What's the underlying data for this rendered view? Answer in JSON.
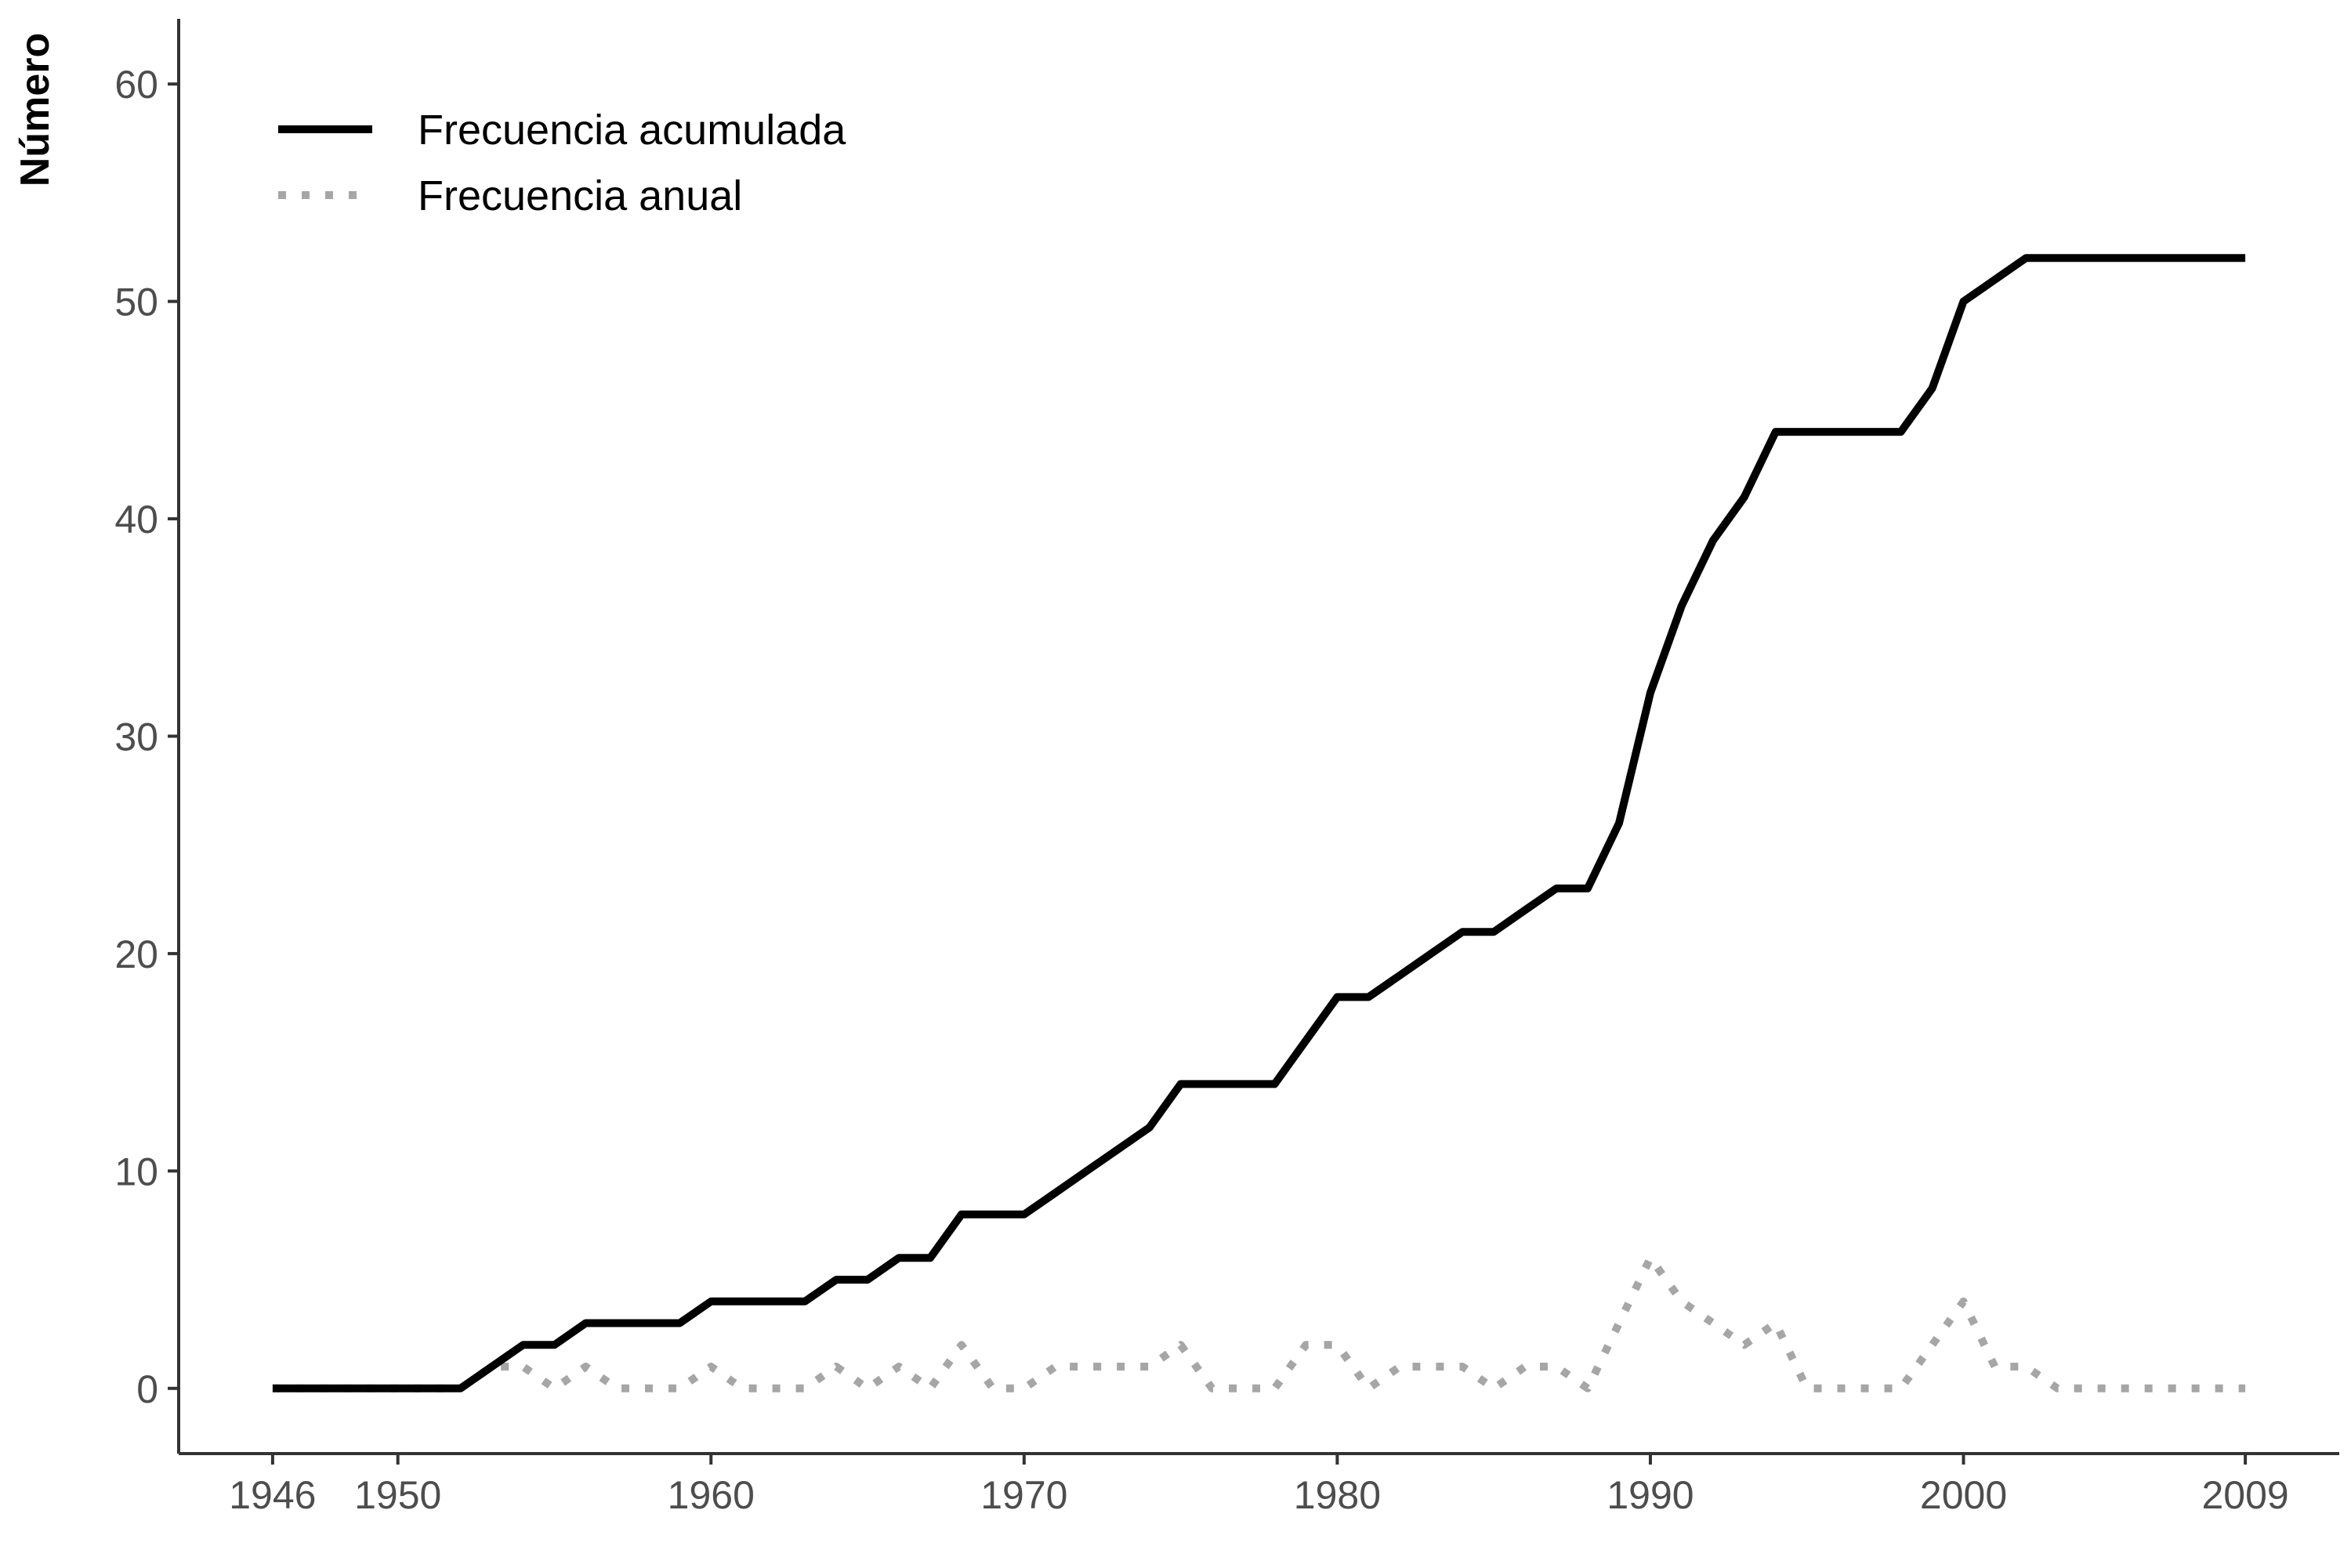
{
  "chart_data": {
    "type": "line",
    "ylabel": "Número",
    "xlabel": "",
    "xlim": [
      1943,
      2012
    ],
    "ylim": [
      -3,
      63
    ],
    "x_ticks": [
      1946,
      1950,
      1960,
      1970,
      1980,
      1990,
      2000,
      2009
    ],
    "y_ticks": [
      0,
      10,
      20,
      30,
      40,
      50,
      60
    ],
    "grid": false,
    "legend_position": "top-left",
    "x": [
      1946,
      1947,
      1948,
      1949,
      1950,
      1951,
      1952,
      1953,
      1954,
      1955,
      1956,
      1957,
      1958,
      1959,
      1960,
      1961,
      1962,
      1963,
      1964,
      1965,
      1966,
      1967,
      1968,
      1969,
      1970,
      1971,
      1972,
      1973,
      1974,
      1975,
      1976,
      1977,
      1978,
      1979,
      1980,
      1981,
      1982,
      1983,
      1984,
      1985,
      1986,
      1987,
      1988,
      1989,
      1990,
      1991,
      1992,
      1993,
      1994,
      1995,
      1996,
      1997,
      1998,
      1999,
      2000,
      2001,
      2002,
      2003,
      2004,
      2005,
      2006,
      2007,
      2008,
      2009
    ],
    "series": [
      {
        "name": "Frecuencia acumulada",
        "color": "#000000",
        "style": "solid",
        "values": [
          0,
          0,
          0,
          0,
          0,
          0,
          0,
          1,
          2,
          2,
          3,
          3,
          3,
          3,
          4,
          4,
          4,
          4,
          5,
          5,
          6,
          6,
          8,
          8,
          8,
          9,
          10,
          11,
          12,
          14,
          14,
          14,
          14,
          16,
          18,
          18,
          19,
          20,
          21,
          21,
          22,
          23,
          23,
          26,
          32,
          36,
          39,
          41,
          44,
          44,
          44,
          44,
          44,
          46,
          50,
          51,
          52,
          52,
          52,
          52,
          52,
          52,
          52,
          52
        ]
      },
      {
        "name": "Frecuencia anual",
        "color": "#a6a6a6",
        "style": "dotted",
        "values": [
          0,
          0,
          0,
          0,
          0,
          0,
          0,
          1,
          1,
          0,
          1,
          0,
          0,
          0,
          1,
          0,
          0,
          0,
          1,
          0,
          1,
          0,
          2,
          0,
          0,
          1,
          1,
          1,
          1,
          2,
          0,
          0,
          0,
          2,
          2,
          0,
          1,
          1,
          1,
          0,
          1,
          1,
          0,
          3,
          6,
          4,
          3,
          2,
          3,
          0,
          0,
          0,
          0,
          2,
          4,
          1,
          1,
          0,
          0,
          0,
          0,
          0,
          0,
          0
        ]
      }
    ]
  }
}
